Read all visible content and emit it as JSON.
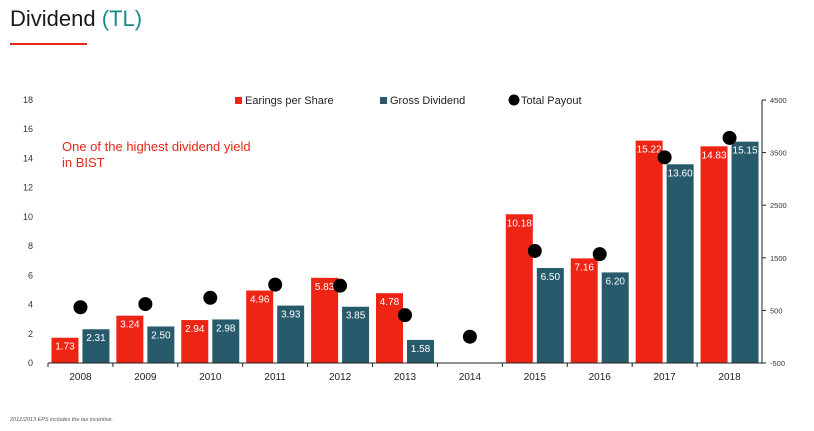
{
  "header": {
    "title": "Dividend",
    "unit": "(TL)"
  },
  "callout": "One of the highest dividend yield in BIST",
  "footnote": "2012/2013 EPS includes the tax incentive.",
  "colors": {
    "eps": "#ee2515",
    "gross": "#275a6b",
    "payout": "#000000",
    "accent": "#e8261a"
  },
  "chart_data": {
    "type": "bar",
    "categories": [
      "2008",
      "2009",
      "2010",
      "2011",
      "2012",
      "2013",
      "2014",
      "2015",
      "2016",
      "2017",
      "2018"
    ],
    "series": [
      {
        "name": "Earings per Share",
        "axis": "left",
        "type": "bar",
        "values": [
          1.73,
          3.24,
          2.94,
          4.96,
          5.83,
          4.78,
          null,
          10.18,
          7.16,
          15.22,
          14.83
        ],
        "labels": [
          "1.73",
          "3.24",
          "2.94",
          "4.96",
          "5.83",
          "4.78",
          "",
          "10.18",
          "7.16",
          "15.22",
          "14.83"
        ]
      },
      {
        "name": "Gross Dividend",
        "axis": "left",
        "type": "bar",
        "values": [
          2.31,
          2.5,
          2.98,
          3.93,
          3.85,
          1.58,
          null,
          6.5,
          6.2,
          13.6,
          15.15
        ],
        "labels": [
          "2.31",
          "2.50",
          "2.98",
          "3.93",
          "3.85",
          "1.58",
          "",
          "6.50",
          "6.20",
          "13.60",
          "15.15"
        ]
      },
      {
        "name": "Total Payout",
        "axis": "right",
        "type": "scatter",
        "values": [
          560,
          620,
          740,
          990,
          970,
          410,
          0,
          1630,
          1570,
          3410,
          3780
        ]
      }
    ],
    "y_left": {
      "ylim": [
        0,
        18
      ],
      "ticks": [
        "0",
        "2",
        "4",
        "6",
        "8",
        "10",
        "12",
        "14",
        "16",
        "18"
      ]
    },
    "y_right": {
      "ylim": [
        -500,
        4500
      ],
      "ticks": [
        "-500",
        "500",
        "1500",
        "2500",
        "3500",
        "4500"
      ]
    },
    "legend": {
      "position": "top-center"
    },
    "grid": false
  }
}
